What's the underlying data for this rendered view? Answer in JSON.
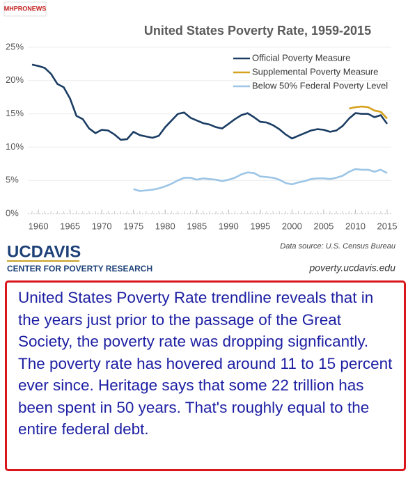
{
  "logo": "MHPRONEWS",
  "branding": {
    "name": "UCDAVIS",
    "center": "CENTER FOR POVERTY RESEARCH",
    "url": "poverty.ucdavis.edu"
  },
  "caption": "United States Poverty Rate trendline reveals that in the years just prior to the passage of the Great Society, the poverty rate was dropping signficantly. The poverty rate has hovered around 11 to 15 percent ever since. Heritage says that some 22 trillion has been spent in 50 years. That's roughly equal to the entire federal debt.",
  "chart_data": {
    "type": "line",
    "title": "United States Poverty Rate, 1959-2015",
    "source": "Data source: U.S. Census Bureau",
    "x": [
      1959,
      1960,
      1961,
      1962,
      1963,
      1964,
      1965,
      1966,
      1967,
      1968,
      1969,
      1970,
      1971,
      1972,
      1973,
      1974,
      1975,
      1976,
      1977,
      1978,
      1979,
      1980,
      1981,
      1982,
      1983,
      1984,
      1985,
      1986,
      1987,
      1988,
      1989,
      1990,
      1991,
      1992,
      1993,
      1994,
      1995,
      1996,
      1997,
      1998,
      1999,
      2000,
      2001,
      2002,
      2003,
      2004,
      2005,
      2006,
      2007,
      2008,
      2009,
      2010,
      2011,
      2012,
      2013,
      2014,
      2015
    ],
    "series": [
      {
        "name": "Official Poverty Measure",
        "color": "#1b3d63",
        "values": [
          22.4,
          22.2,
          21.9,
          21.0,
          19.5,
          19.0,
          17.3,
          14.7,
          14.2,
          12.8,
          12.1,
          12.6,
          12.5,
          11.9,
          11.1,
          11.2,
          12.3,
          11.8,
          11.6,
          11.4,
          11.7,
          13.0,
          14.0,
          15.0,
          15.2,
          14.4,
          14.0,
          13.6,
          13.4,
          13.0,
          12.8,
          13.5,
          14.2,
          14.8,
          15.1,
          14.5,
          13.8,
          13.7,
          13.3,
          12.7,
          11.9,
          11.3,
          11.7,
          12.1,
          12.5,
          12.7,
          12.6,
          12.3,
          12.5,
          13.2,
          14.3,
          15.1,
          15.0,
          15.0,
          14.5,
          14.8,
          13.5
        ]
      },
      {
        "name": "Supplemental Poverty Measure",
        "color": "#d6a21e",
        "values": [
          null,
          null,
          null,
          null,
          null,
          null,
          null,
          null,
          null,
          null,
          null,
          null,
          null,
          null,
          null,
          null,
          null,
          null,
          null,
          null,
          null,
          null,
          null,
          null,
          null,
          null,
          null,
          null,
          null,
          null,
          null,
          null,
          null,
          null,
          null,
          null,
          null,
          null,
          null,
          null,
          null,
          null,
          null,
          null,
          null,
          null,
          null,
          null,
          null,
          null,
          15.8,
          16.0,
          16.1,
          16.0,
          15.5,
          15.3,
          14.3
        ]
      },
      {
        "name": "Below 50% Federal Poverty Level",
        "color": "#9cc5e6",
        "values": [
          null,
          null,
          null,
          null,
          null,
          null,
          null,
          null,
          null,
          null,
          null,
          null,
          null,
          null,
          null,
          null,
          3.7,
          3.4,
          3.5,
          3.6,
          3.8,
          4.1,
          4.5,
          5.0,
          5.4,
          5.4,
          5.1,
          5.3,
          5.2,
          5.1,
          4.9,
          5.1,
          5.4,
          5.9,
          6.2,
          6.1,
          5.6,
          5.5,
          5.4,
          5.1,
          4.6,
          4.4,
          4.7,
          4.9,
          5.2,
          5.3,
          5.3,
          5.2,
          5.4,
          5.7,
          6.3,
          6.7,
          6.6,
          6.6,
          6.3,
          6.6,
          6.1
        ]
      }
    ],
    "xlim": [
      1959,
      2015
    ],
    "xticks": [
      1960,
      1965,
      1970,
      1975,
      1980,
      1985,
      1990,
      1995,
      2000,
      2005,
      2010,
      2015
    ],
    "ylim": [
      0,
      25
    ],
    "yticks": [
      {
        "value": 0,
        "label": "0%"
      },
      {
        "value": 5,
        "label": "5%"
      },
      {
        "value": 10,
        "label": "10%"
      },
      {
        "value": 15,
        "label": "15%"
      },
      {
        "value": 20,
        "label": "20%"
      },
      {
        "value": 25,
        "label": "25%"
      }
    ],
    "grid": true,
    "legend": "upper right"
  }
}
